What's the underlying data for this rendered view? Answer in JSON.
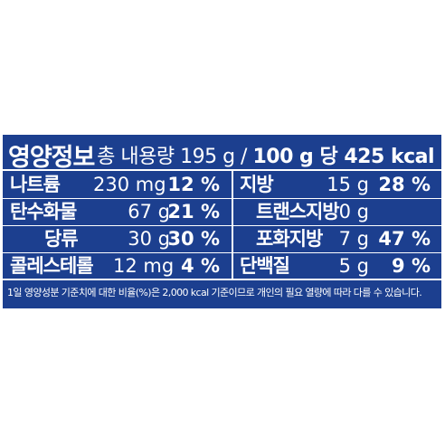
{
  "title": "영양정보",
  "serving": {
    "total_label": "총 내용량 195 g /",
    "per_label": "100 g 당 425 kcal"
  },
  "rows": [
    {
      "left": {
        "name": "나트륨",
        "amount": "230 mg",
        "percent": "12 %"
      },
      "right": {
        "name": "지방",
        "amount": "15 g",
        "percent": "28 %"
      }
    },
    {
      "left": {
        "name": "탄수화물",
        "amount": "67 g",
        "percent": "21 %"
      },
      "right": {
        "name": "트랜스지방",
        "amount": "0 g",
        "percent": ""
      }
    },
    {
      "left": {
        "name": "당류",
        "amount": "30 g",
        "percent": "30 %"
      },
      "right": {
        "name": "포화지방",
        "amount": "7 g",
        "percent": "47 %"
      }
    },
    {
      "left": {
        "name": "콜레스테롤",
        "amount": "12 mg",
        "percent": "4 %"
      },
      "right": {
        "name": "단백질",
        "amount": "5 g",
        "percent": "9 %"
      }
    }
  ],
  "footnote": "1일 영양성분 기준치에 대한 비율(%)은 2,000 kcal 기준이므로 개인의 필요 열량에 따라 다를 수 있습니다.",
  "colors": {
    "background": "#1c3f8f",
    "text": "#ffffff"
  }
}
